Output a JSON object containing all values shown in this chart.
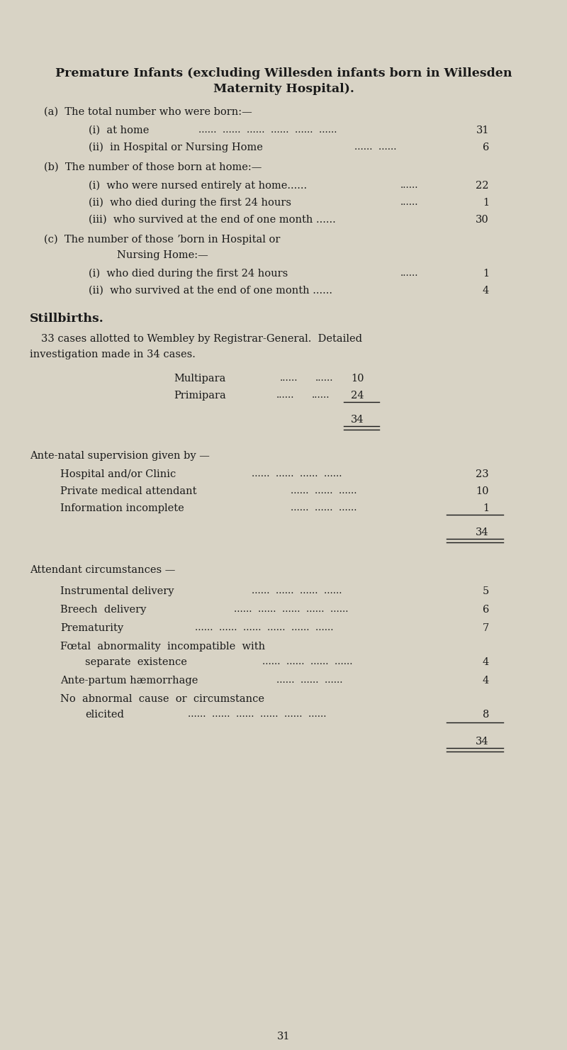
{
  "bg_color": "#d8d3c5",
  "text_color": "#1a1a1a",
  "page_number": "31",
  "title_line1": "Premature Infants (excluding Willesden infants born in Willesden",
  "title_line2": "Maternity Hospital).",
  "font_size_title": 12.5,
  "font_size_body": 10.5,
  "font_size_dots": 9.5
}
